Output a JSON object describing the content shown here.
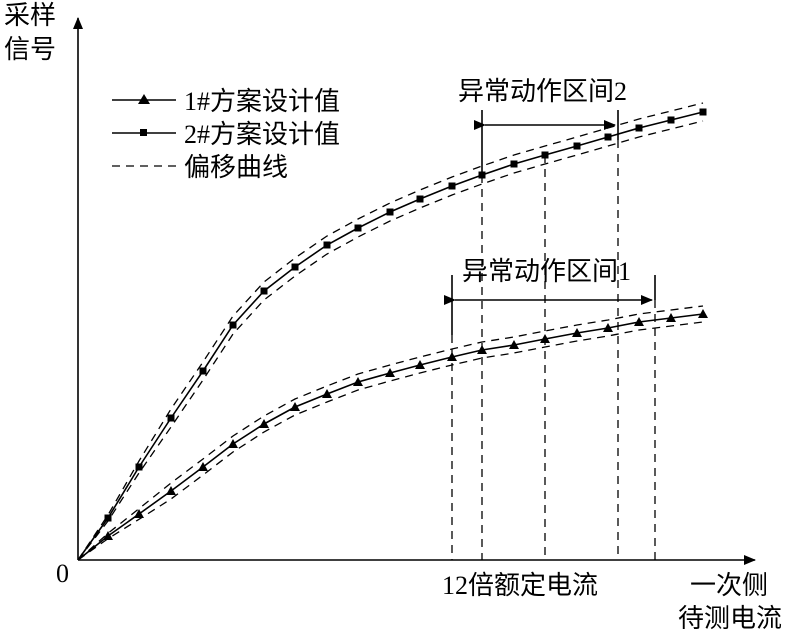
{
  "axes": {
    "y_label_line1": "采样",
    "y_label_line2": "信号",
    "origin": "0",
    "x_label_line1": "一次侧",
    "x_label_line2": "待测电流",
    "x_marker": "12倍额定电流"
  },
  "legend": {
    "items": [
      "1#方案设计值",
      "2#方案设计值",
      "偏移曲线"
    ]
  },
  "annotations": {
    "interval_2": "异常动作区间2",
    "interval_1": "异常动作区间1"
  }
}
